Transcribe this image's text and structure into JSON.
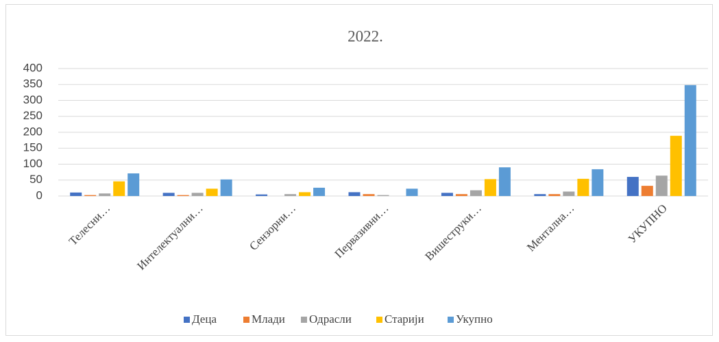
{
  "chart_data": {
    "type": "bar",
    "title": "2022.",
    "categories": [
      "Телесни…",
      "Интелектуални…",
      "Сензорни…",
      "Первазивни…",
      "Вишеструки…",
      "Ментална…",
      "УКУПНО"
    ],
    "series": [
      {
        "name": "Деца",
        "color": "#4472c4",
        "values": [
          11,
          10,
          5,
          12,
          10,
          6,
          60
        ]
      },
      {
        "name": "Млади",
        "color": "#ed7d31",
        "values": [
          3,
          3,
          0,
          6,
          6,
          6,
          32
        ]
      },
      {
        "name": "Одрасли",
        "color": "#a5a5a5",
        "values": [
          8,
          10,
          6,
          3,
          18,
          14,
          64
        ]
      },
      {
        "name": "Старији",
        "color": "#ffc000",
        "values": [
          46,
          23,
          12,
          0,
          53,
          54,
          189
        ]
      },
      {
        "name": "Укупно",
        "color": "#5b9bd5",
        "values": [
          71,
          52,
          26,
          23,
          90,
          84,
          348
        ]
      }
    ],
    "ylim": [
      0,
      400
    ],
    "yticks": [
      0,
      50,
      100,
      150,
      200,
      250,
      300,
      350,
      400
    ],
    "grid": true,
    "legend": "bottom"
  }
}
